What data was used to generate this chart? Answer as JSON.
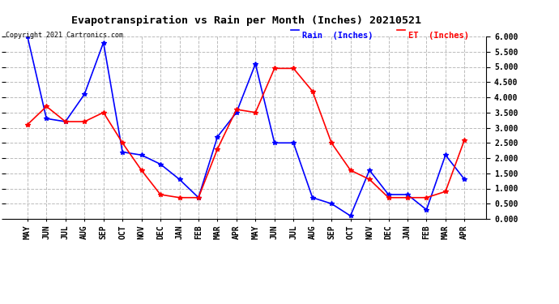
{
  "title": "Evapotranspiration vs Rain per Month (Inches) 20210521",
  "copyright": "Copyright 2021 Cartronics.com",
  "legend_rain": "Rain  (Inches)",
  "legend_et": "ET  (Inches)",
  "months": [
    "MAY",
    "JUN",
    "JUL",
    "AUG",
    "SEP",
    "OCT",
    "NOV",
    "DEC",
    "JAN",
    "FEB",
    "MAR",
    "APR",
    "MAY",
    "JUN",
    "JUL",
    "AUG",
    "SEP",
    "OCT",
    "NOV",
    "DEC",
    "JAN",
    "FEB",
    "MAR",
    "APR"
  ],
  "rain_inches": [
    6.0,
    3.3,
    3.2,
    4.1,
    5.8,
    2.2,
    2.1,
    1.8,
    1.3,
    0.7,
    2.7,
    3.5,
    5.1,
    2.5,
    2.5,
    0.7,
    0.5,
    0.1,
    1.6,
    0.8,
    0.8,
    0.3,
    2.1,
    1.3
  ],
  "et_inches": [
    3.1,
    3.7,
    3.2,
    3.2,
    3.5,
    2.5,
    1.6,
    0.8,
    0.7,
    0.7,
    2.3,
    3.6,
    3.5,
    4.95,
    4.95,
    4.2,
    2.5,
    1.6,
    1.3,
    0.7,
    0.7,
    0.7,
    0.9,
    2.6
  ],
  "rain_color": "#0000ff",
  "et_color": "#ff0000",
  "background_color": "#ffffff",
  "grid_color": "#bbbbbb",
  "ylim": [
    0.0,
    6.0
  ],
  "yticks": [
    0.0,
    0.5,
    1.0,
    1.5,
    2.0,
    2.5,
    3.0,
    3.5,
    4.0,
    4.5,
    5.0,
    5.5,
    6.0
  ],
  "title_fontsize": 9.5,
  "tick_fontsize": 7,
  "copyright_fontsize": 6,
  "legend_fontsize": 7.5,
  "marker": "*",
  "linewidth": 1.2,
  "markersize": 4
}
